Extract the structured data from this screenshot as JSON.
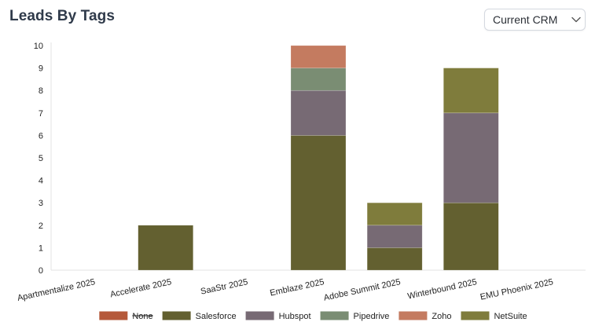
{
  "header": {
    "title": "Leads By Tags",
    "crm_select_value": "Current CRM"
  },
  "chart_data": {
    "type": "bar",
    "stacked": true,
    "title": "Leads By Tags",
    "categories": [
      "Apartmentalize 2025",
      "Accelerate 2025",
      "SaaStr 2025",
      "Emblaze 2025",
      "Adobe Summit 2025",
      "Winterbound 2025",
      "EMU Phoenix 2025"
    ],
    "ylim": [
      0,
      10
    ],
    "yticks": [
      0,
      1,
      2,
      3,
      4,
      5,
      6,
      7,
      8,
      9,
      10
    ],
    "grid": false,
    "legend_position": "bottom",
    "series": [
      {
        "name": "None",
        "color": "#b5593a",
        "hidden": true,
        "values": [
          0,
          0,
          0,
          0,
          0,
          0,
          0
        ]
      },
      {
        "name": "Salesforce",
        "color": "#636030",
        "values": [
          0,
          2,
          0,
          6,
          1,
          3,
          0
        ]
      },
      {
        "name": "Hubspot",
        "color": "#776a74",
        "values": [
          0,
          0,
          0,
          2,
          1,
          4,
          0
        ]
      },
      {
        "name": "Pipedrive",
        "color": "#7a8d73",
        "values": [
          0,
          0,
          0,
          1,
          0,
          0,
          0
        ]
      },
      {
        "name": "Zoho",
        "color": "#c47b60",
        "values": [
          0,
          0,
          0,
          1,
          0,
          0,
          0
        ]
      },
      {
        "name": "NetSuite",
        "color": "#7f7c3c",
        "values": [
          0,
          0,
          0,
          0,
          1,
          2,
          0
        ]
      }
    ]
  }
}
